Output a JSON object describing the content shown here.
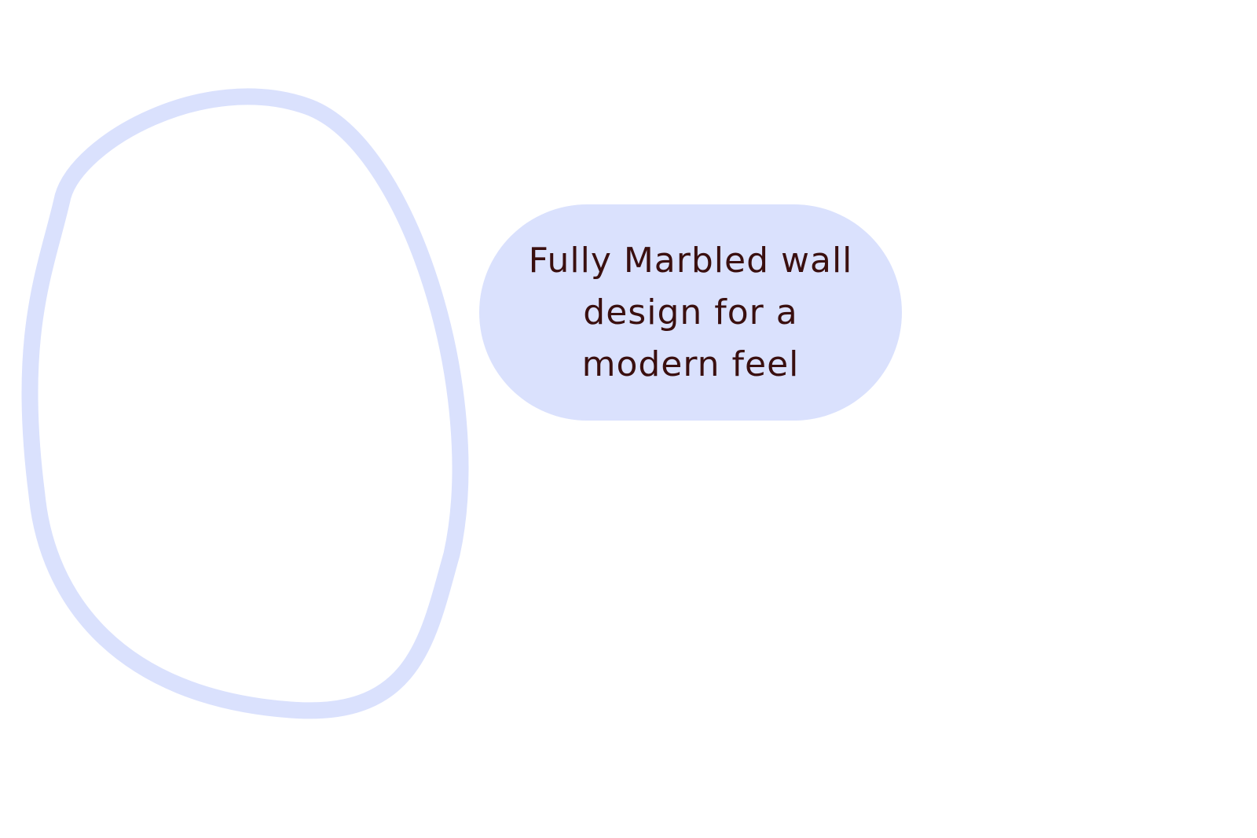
{
  "theme": {
    "shape_color": "#dae1fd",
    "text_color": "#3a0f0f",
    "background": "#ffffff"
  },
  "image_placeholder": {
    "icon": "blob-outline-icon"
  },
  "caption": {
    "text": "Fully Marbled wall design for a modern feel"
  }
}
